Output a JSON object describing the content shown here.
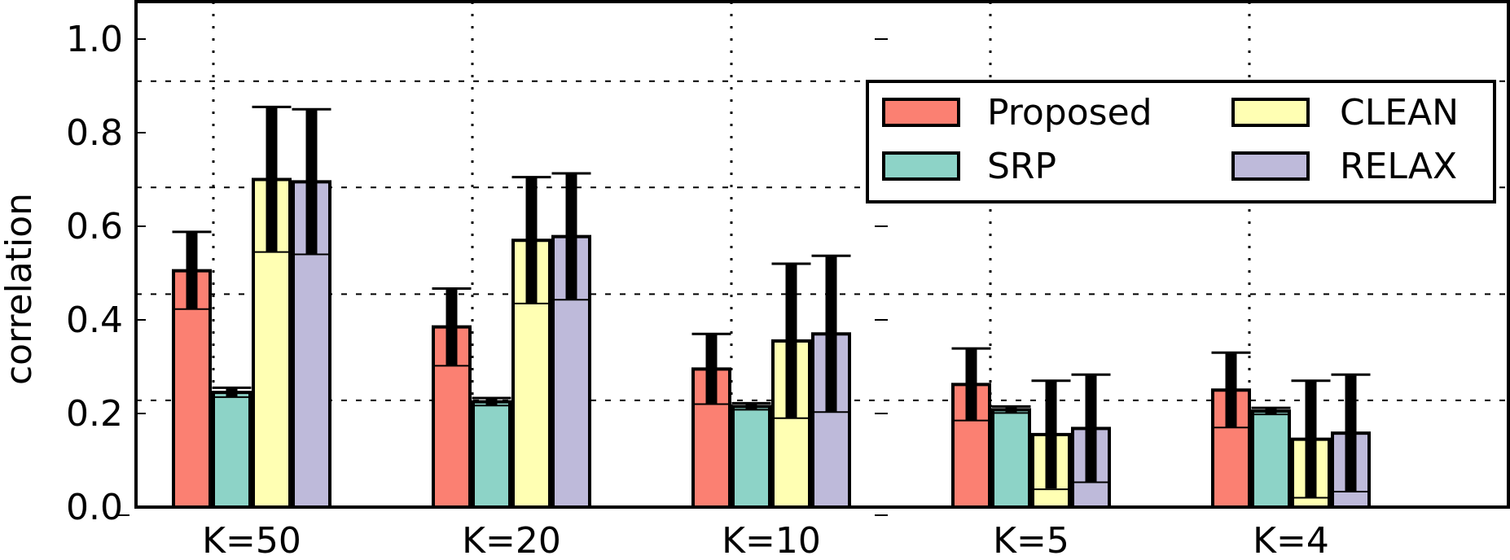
{
  "chart_data": {
    "type": "bar",
    "title": "",
    "xlabel": "",
    "ylabel": "correlation",
    "ylim": [
      0,
      1.08
    ],
    "yticks": [
      "0.0",
      "0.2",
      "0.4",
      "0.6",
      "0.8",
      "1.0"
    ],
    "categories": [
      "K=50",
      "K=20",
      "K=10",
      "K=5",
      "K=4"
    ],
    "grid": true,
    "legend_position": "top-right",
    "series": [
      {
        "name": "Proposed",
        "color": "#fb8072",
        "values": [
          0.505,
          0.385,
          0.295,
          0.262,
          0.25
        ],
        "error": [
          0.083,
          0.082,
          0.075,
          0.077,
          0.08
        ],
        "inner": [
          0.423,
          0.302,
          0.22,
          0.185,
          0.17
        ]
      },
      {
        "name": "SRP",
        "color": "#8dd3c7",
        "values": [
          0.245,
          0.225,
          0.215,
          0.208,
          0.205
        ],
        "error": [
          0.01,
          0.008,
          0.007,
          0.007,
          0.007
        ],
        "inner": [
          0.235,
          0.217,
          0.208,
          0.201,
          0.198
        ]
      },
      {
        "name": "CLEAN",
        "color": "#ffffb3",
        "values": [
          0.7,
          0.57,
          0.355,
          0.155,
          0.145
        ],
        "error": [
          0.155,
          0.135,
          0.165,
          0.115,
          0.125
        ],
        "inner": [
          0.545,
          0.435,
          0.19,
          0.038,
          0.02
        ]
      },
      {
        "name": "RELAX",
        "color": "#bebada",
        "values": [
          0.695,
          0.578,
          0.37,
          0.168,
          0.158
        ],
        "error": [
          0.155,
          0.135,
          0.167,
          0.115,
          0.125
        ],
        "inner": [
          0.54,
          0.443,
          0.203,
          0.053,
          0.033
        ]
      }
    ]
  }
}
